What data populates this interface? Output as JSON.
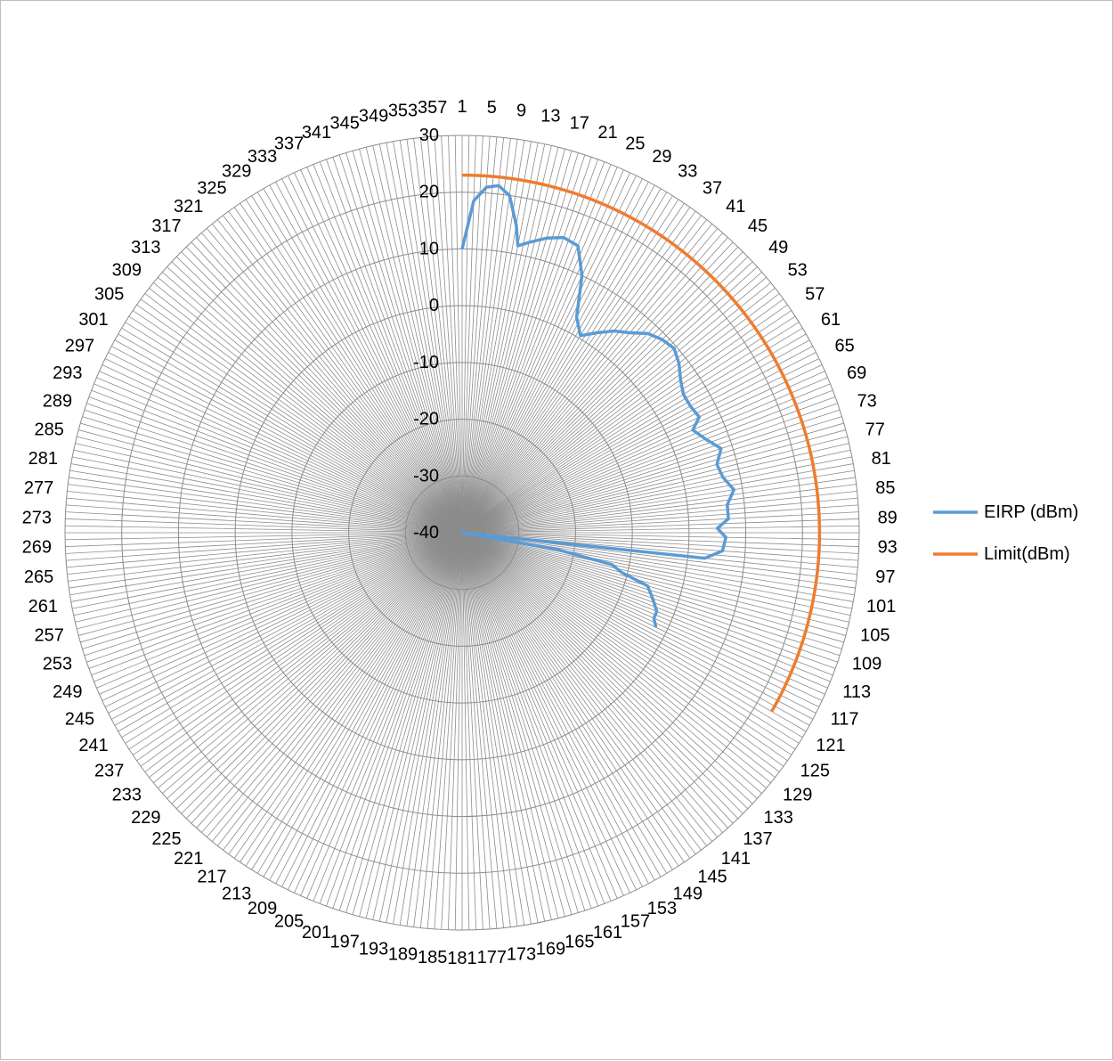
{
  "chart_data": {
    "type": "radar",
    "angle_unit": "degrees",
    "angle_tick_start": 1,
    "angle_tick_step": 4,
    "angle_tick_count": 90,
    "radial_range": [
      -40,
      30
    ],
    "radial_ticks": [
      "-40",
      "-30",
      "-20",
      "-10",
      "0",
      "10",
      "20",
      "30"
    ],
    "grid": true,
    "legend_position": "right",
    "series": [
      {
        "name": "EIRP (dBm)",
        "color": "#5b9bd5",
        "points": [
          [
            1,
            10
          ],
          [
            3,
            18.5
          ],
          [
            5,
            21
          ],
          [
            7,
            21.5
          ],
          [
            9,
            20
          ],
          [
            11,
            15
          ],
          [
            12,
            11.5
          ],
          [
            14,
            12.5
          ],
          [
            17,
            14
          ],
          [
            20,
            15
          ],
          [
            23,
            14.5
          ],
          [
            26,
            10
          ],
          [
            29,
            3
          ],
          [
            32,
            0.5
          ],
          [
            35,
            2.5
          ],
          [
            38,
            4.5
          ],
          [
            41,
            6
          ],
          [
            44,
            8
          ],
          [
            47,
            9
          ],
          [
            50,
            9.5
          ],
          [
            53,
            8.5
          ],
          [
            56,
            7
          ],
          [
            59,
            6
          ],
          [
            62,
            6
          ],
          [
            65,
            6.5
          ],
          [
            67,
            4.5
          ],
          [
            70,
            6
          ],
          [
            73,
            8
          ],
          [
            76,
            6.5
          ],
          [
            79,
            7
          ],
          [
            82,
            8.5
          ],
          [
            85,
            7
          ],
          [
            88,
            7
          ],
          [
            90,
            5
          ],
          [
            92,
            6.5
          ],
          [
            95,
            6
          ],
          [
            97,
            3
          ],
          [
            99,
            -40
          ],
          [
            101,
            -23
          ],
          [
            103,
            -13
          ],
          [
            105,
            -11
          ],
          [
            107,
            -6
          ],
          [
            109,
            -5
          ],
          [
            111,
            -4
          ],
          [
            113,
            -3
          ],
          [
            115,
            -3
          ],
          [
            117,
            -2
          ]
        ]
      },
      {
        "name": "Limit(dBm)",
        "color": "#ed7d31",
        "points": [
          [
            1,
            23
          ],
          [
            121,
            23
          ]
        ]
      }
    ]
  }
}
